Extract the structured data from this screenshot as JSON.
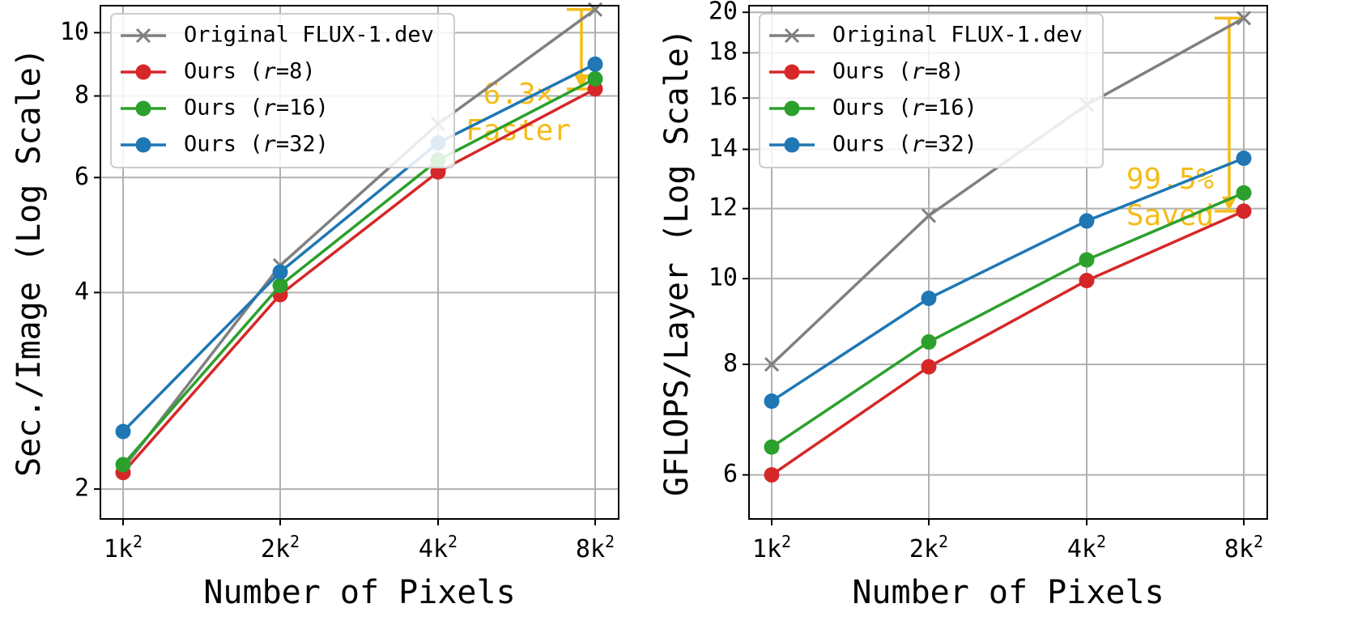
{
  "colors": {
    "original": "#808080",
    "r8": "#D62728",
    "r16": "#2CA02C",
    "r32": "#1F77B4",
    "annotation": "#F5BC18",
    "grid": "#B0B0B0"
  },
  "chart_data": [
    {
      "type": "line",
      "title": "",
      "xlabel": "Number of Pixels",
      "ylabel": "Sec./Image (Log Scale)",
      "categories": [
        "1k",
        "2k",
        "4k",
        "8k"
      ],
      "category_superscript": "2",
      "yticks": [
        2,
        4,
        6,
        8,
        10
      ],
      "ylim": [
        1.8,
        11.0
      ],
      "grid": true,
      "legend_position": "top-left",
      "series": [
        {
          "name": "Original FLUX-1.dev",
          "marker": "x",
          "color": "#808080",
          "values": [
            2.15,
            4.4,
            7.25,
            10.85
          ]
        },
        {
          "name": "Ours (r=8)",
          "name_prefix": "Ours (",
          "name_var": "r",
          "name_suffix": "=8)",
          "marker": "circle",
          "color": "#D62728",
          "values": [
            2.12,
            3.97,
            6.12,
            8.2
          ]
        },
        {
          "name": "Ours (r=16)",
          "name_prefix": "Ours (",
          "name_var": "r",
          "name_suffix": "=16)",
          "marker": "circle",
          "color": "#2CA02C",
          "values": [
            2.18,
            4.1,
            6.38,
            8.5
          ]
        },
        {
          "name": "Ours (r=32)",
          "name_prefix": "Ours (",
          "name_var": "r",
          "name_suffix": "=32)",
          "marker": "circle",
          "color": "#1F77B4",
          "values": [
            2.45,
            4.3,
            6.78,
            8.95
          ]
        }
      ],
      "annotation": {
        "line1": "6.3×",
        "line2": "Faster",
        "from": 10.85,
        "to": 8.2
      }
    },
    {
      "type": "line",
      "title": "",
      "xlabel": "Number of Pixels",
      "ylabel": "GFLOPS/Layer (Log Scale)",
      "categories": [
        "1k",
        "2k",
        "4k",
        "8k"
      ],
      "category_superscript": "2",
      "yticks": [
        6,
        8,
        10,
        12,
        14,
        16,
        18,
        20
      ],
      "ylim": [
        5.35,
        20.35
      ],
      "grid": true,
      "legend_position": "top-left",
      "series": [
        {
          "name": "Original FLUX-1.dev",
          "marker": "x",
          "color": "#808080",
          "values": [
            8.0,
            11.78,
            15.72,
            19.7
          ]
        },
        {
          "name": "Ours (r=8)",
          "name_prefix": "Ours (",
          "name_var": "r",
          "name_suffix": "=8)",
          "marker": "circle",
          "color": "#D62728",
          "values": [
            6.0,
            7.95,
            9.95,
            11.92
          ]
        },
        {
          "name": "Ours (r=16)",
          "name_prefix": "Ours (",
          "name_var": "r",
          "name_suffix": "=16)",
          "marker": "circle",
          "color": "#2CA02C",
          "values": [
            6.45,
            8.48,
            10.5,
            12.5
          ]
        },
        {
          "name": "Ours (r=32)",
          "name_prefix": "Ours (",
          "name_var": "r",
          "name_suffix": "=32)",
          "marker": "circle",
          "color": "#1F77B4",
          "values": [
            7.27,
            9.5,
            11.62,
            13.68
          ]
        }
      ],
      "annotation": {
        "line1": "99.5%",
        "line2": "Saved",
        "from": 19.7,
        "to": 11.92
      }
    }
  ]
}
